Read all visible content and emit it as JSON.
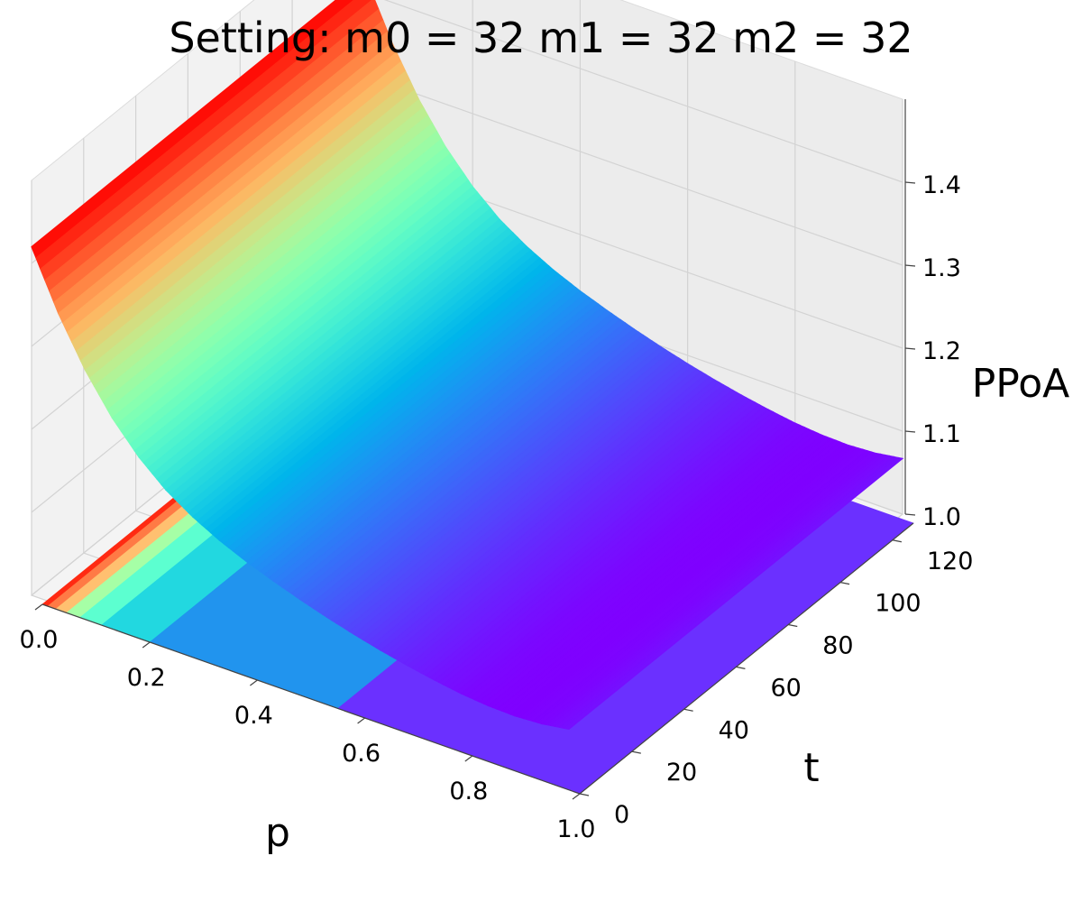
{
  "chart_data": {
    "type": "surface3d",
    "title": "Setting: m0 = 32   m1 = 32   m2 = 32",
    "xlabel": "p",
    "ylabel": "t",
    "zlabel": "PPoA",
    "xlim": [
      0.0,
      1.0
    ],
    "ylim": [
      0,
      128
    ],
    "zlim": [
      1.0,
      1.5
    ],
    "x_ticks": [
      "0.0",
      "0.2",
      "0.4",
      "0.6",
      "0.8",
      "1.0"
    ],
    "y_ticks": [
      "0",
      "20",
      "40",
      "60",
      "80",
      "100",
      "120"
    ],
    "z_ticks": [
      "1.0",
      "1.1",
      "1.2",
      "1.3",
      "1.4"
    ],
    "colormap": "rainbow",
    "grid": true,
    "surface": {
      "x": [
        0.0,
        0.05,
        0.1,
        0.15,
        0.2,
        0.25,
        0.3,
        0.35,
        0.4,
        0.45,
        0.5,
        0.55,
        0.6,
        0.65,
        0.7,
        0.75,
        0.8,
        0.85,
        0.9,
        0.95,
        1.0
      ],
      "z": [
        1.42,
        1.351,
        1.294,
        1.248,
        1.212,
        1.184,
        1.163,
        1.146,
        1.132,
        1.12,
        1.109,
        1.099,
        1.09,
        1.082,
        1.075,
        1.069,
        1.064,
        1.061,
        1.06,
        1.062,
        1.067
      ],
      "note_t": "PPoA is constant along t"
    },
    "contour_levels": [
      {
        "p_from": 0.0,
        "p_to": 0.01,
        "color": "#ff2a12"
      },
      {
        "p_from": 0.01,
        "p_to": 0.025,
        "color": "#ff7a45"
      },
      {
        "p_from": 0.025,
        "p_to": 0.045,
        "color": "#ffc070"
      },
      {
        "p_from": 0.045,
        "p_to": 0.07,
        "color": "#a6ffa6"
      },
      {
        "p_from": 0.07,
        "p_to": 0.11,
        "color": "#5cffd0"
      },
      {
        "p_from": 0.11,
        "p_to": 0.2,
        "color": "#22d8e0"
      },
      {
        "p_from": 0.2,
        "p_to": 0.55,
        "color": "#2194ee"
      },
      {
        "p_from": 0.55,
        "p_to": 1.0,
        "color": "#6b30ff"
      }
    ]
  }
}
